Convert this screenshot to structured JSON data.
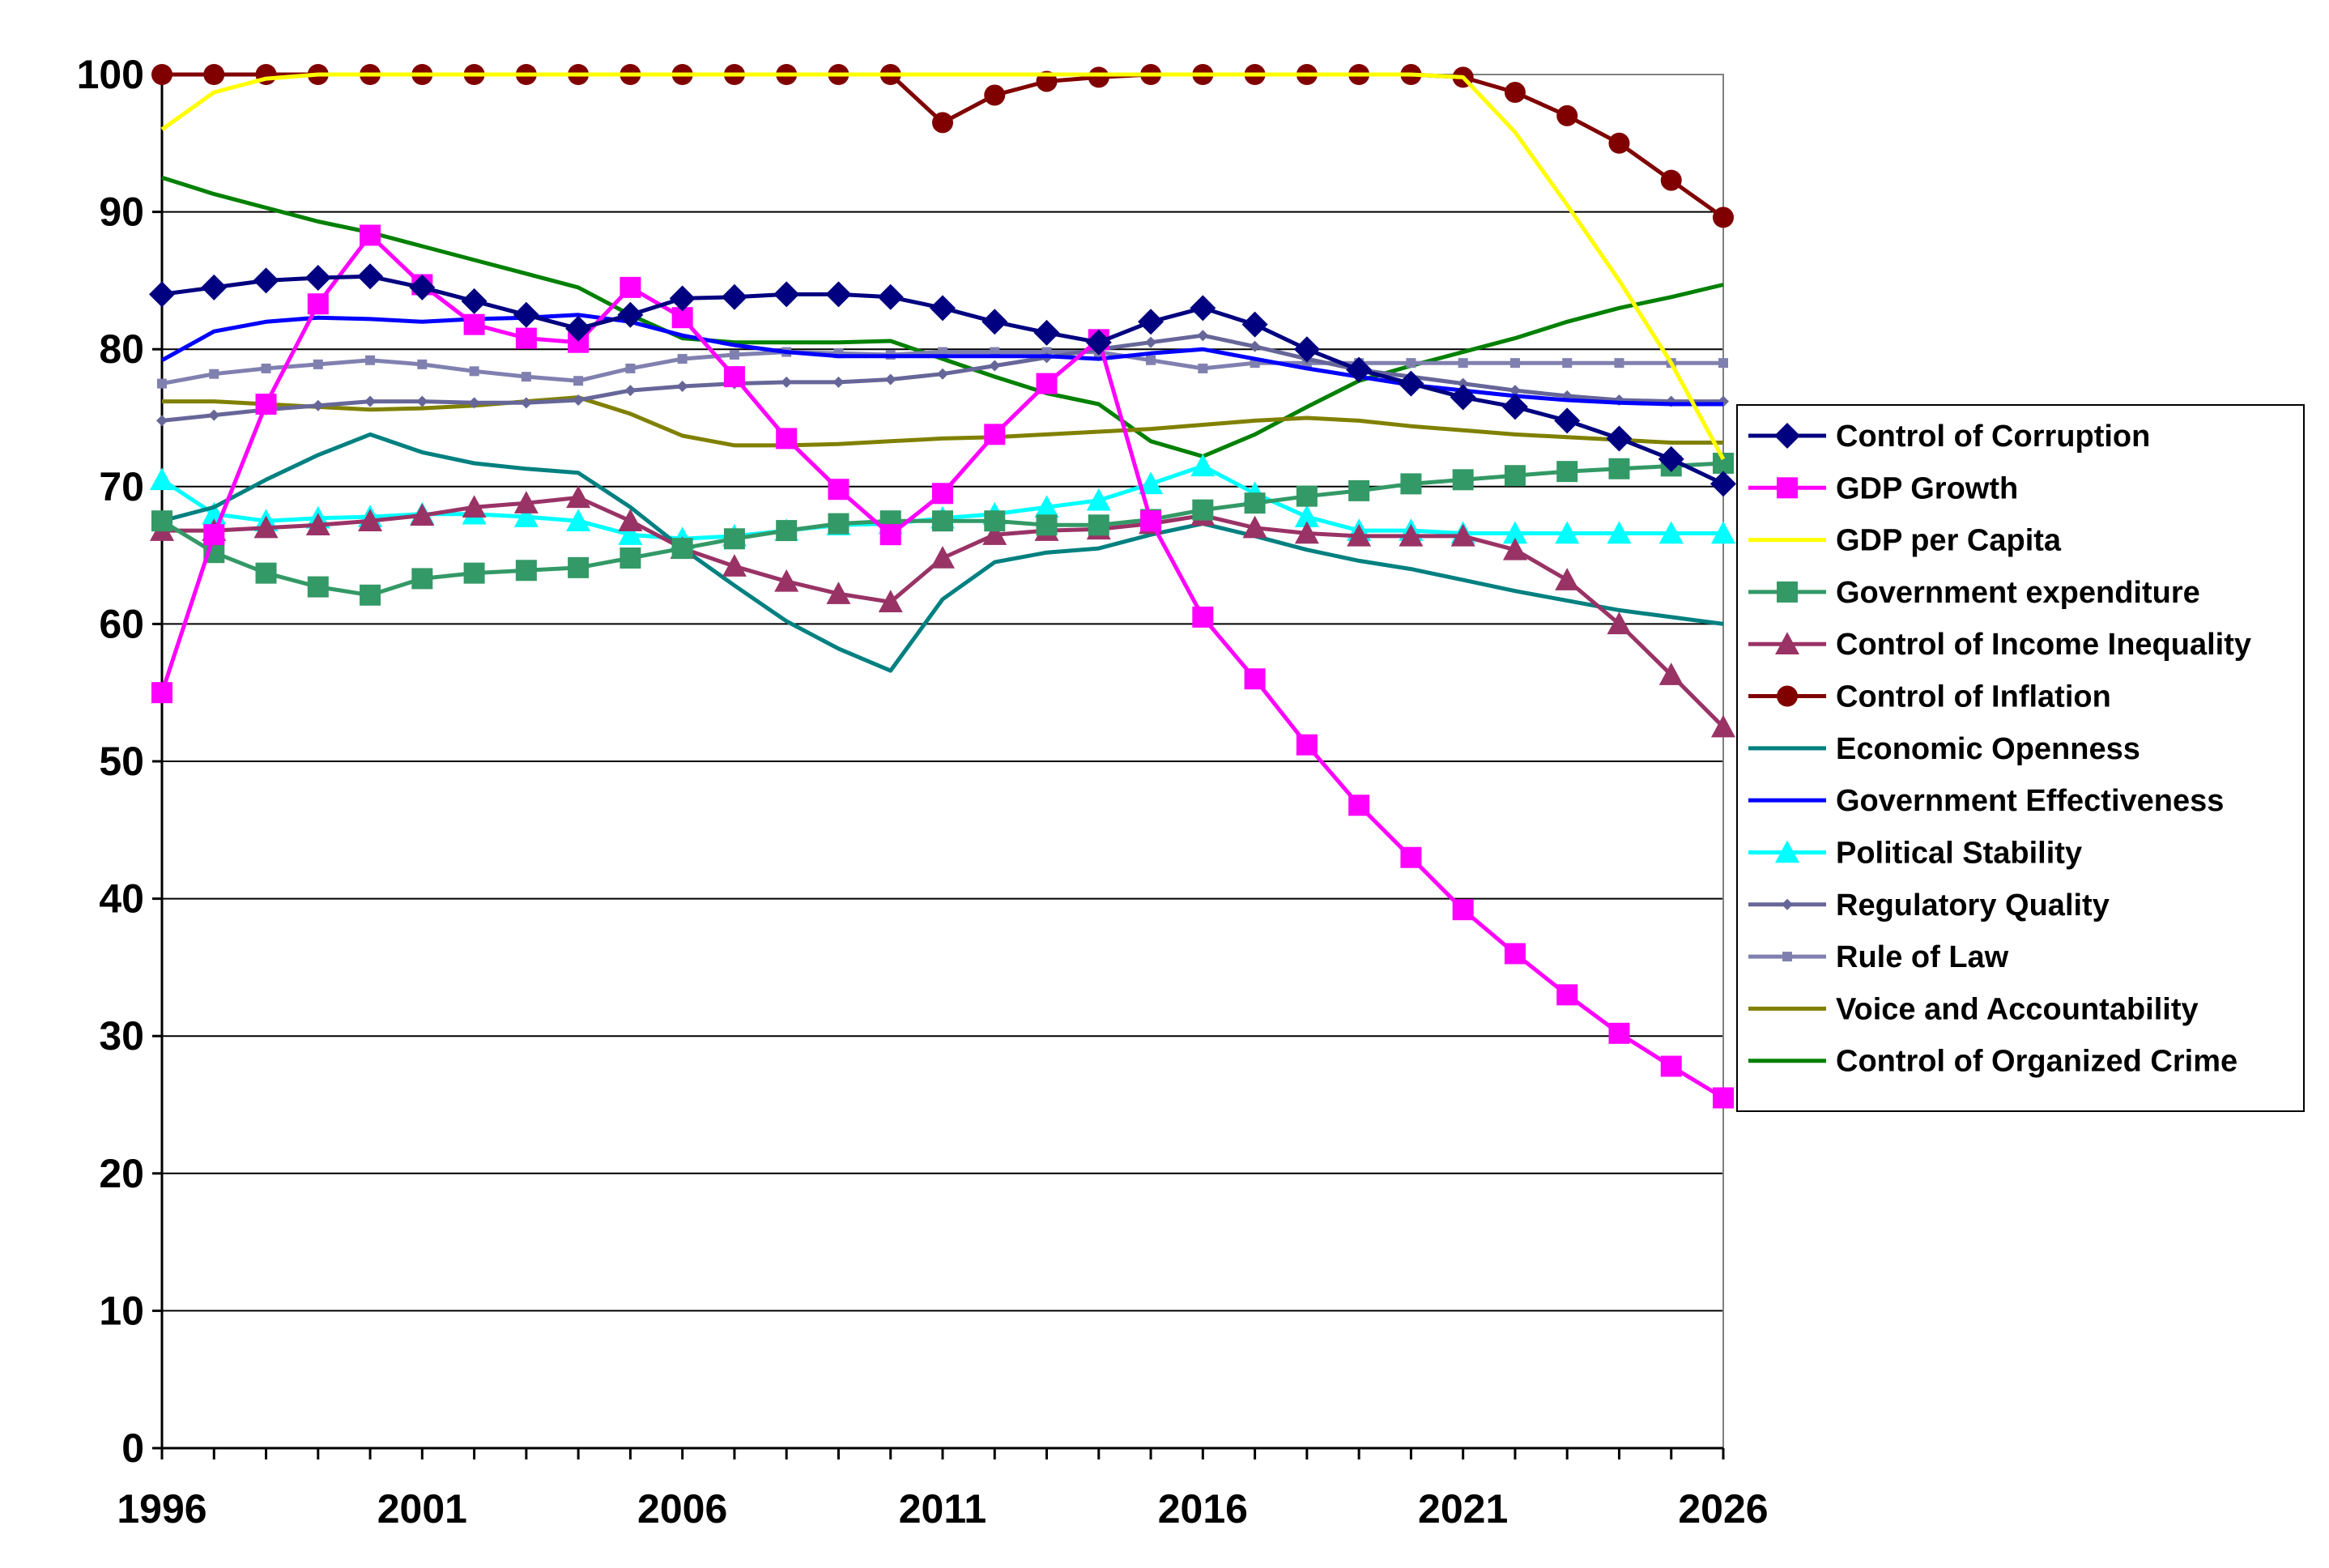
{
  "chart_data": {
    "type": "line",
    "title": "",
    "xlabel": "",
    "ylabel": "",
    "xlim": [
      1996,
      2026
    ],
    "ylim": [
      0,
      100
    ],
    "x_ticks": [
      1996,
      2001,
      2006,
      2011,
      2016,
      2021,
      2026
    ],
    "y_ticks": [
      0,
      10,
      20,
      30,
      40,
      50,
      60,
      70,
      80,
      90,
      100
    ],
    "grid": "horizontal",
    "legend_position": "right",
    "x": [
      1996,
      1997,
      1998,
      1999,
      2000,
      2001,
      2002,
      2003,
      2004,
      2005,
      2006,
      2007,
      2008,
      2009,
      2010,
      2011,
      2012,
      2013,
      2014,
      2015,
      2016,
      2017,
      2018,
      2019,
      2020,
      2021,
      2022,
      2023,
      2024,
      2025,
      2026
    ],
    "series": [
      {
        "name": "Control of Corruption",
        "color": "#000080",
        "marker": "diamond",
        "values": [
          84,
          84.5,
          85,
          85.2,
          85.3,
          84.5,
          83.5,
          82.5,
          81.5,
          82.5,
          83.7,
          83.8,
          84,
          84,
          83.8,
          83,
          82,
          81.2,
          80.5,
          82,
          83,
          81.8,
          80,
          78.5,
          77.5,
          76.5,
          75.8,
          74.8,
          73.5,
          72,
          70.2
        ]
      },
      {
        "name": "GDP Growth",
        "color": "#ff00ff",
        "marker": "square",
        "values": [
          55,
          66.5,
          76,
          83.3,
          88.3,
          84.7,
          81.8,
          80.8,
          80.5,
          84.5,
          82.3,
          78,
          73.5,
          69.8,
          66.5,
          69.5,
          73.8,
          77.5,
          80.7,
          67.5,
          60.5,
          56,
          51.2,
          46.8,
          43,
          39.2,
          36,
          33,
          30.2,
          27.8,
          25.5
        ]
      },
      {
        "name": "GDP per Capita",
        "color": "#ffff00",
        "marker": "none",
        "values": [
          96,
          98.7,
          99.7,
          100,
          100,
          100,
          100,
          100,
          100,
          100,
          100,
          100,
          100,
          100,
          100,
          100,
          100,
          100,
          100,
          100,
          100,
          100,
          100,
          100,
          100,
          99.8,
          95.8,
          90.5,
          85,
          79,
          72
        ]
      },
      {
        "name": "Government expenditure",
        "color": "#339966",
        "marker": "square",
        "values": [
          67.5,
          65.2,
          63.7,
          62.7,
          62.1,
          63.3,
          63.7,
          63.9,
          64.1,
          64.8,
          65.5,
          66.2,
          66.8,
          67.3,
          67.5,
          67.5,
          67.5,
          67.2,
          67.2,
          67.6,
          68.3,
          68.8,
          69.3,
          69.7,
          70.2,
          70.5,
          70.8,
          71.1,
          71.3,
          71.5,
          71.7
        ]
      },
      {
        "name": "Control of Income Inequality",
        "color": "#993366",
        "marker": "triangle",
        "values": [
          66.8,
          66.8,
          67,
          67.2,
          67.5,
          67.9,
          68.5,
          68.8,
          69.2,
          67.5,
          65.5,
          64.2,
          63.1,
          62.2,
          61.6,
          64.8,
          66.5,
          66.8,
          66.9,
          67.3,
          67.9,
          67,
          66.6,
          66.4,
          66.4,
          66.4,
          65.4,
          63.2,
          60,
          56.3,
          52.5
        ]
      },
      {
        "name": "Control of Inflation",
        "color": "#800000",
        "marker": "circle",
        "values": [
          100,
          100,
          100,
          100,
          100,
          100,
          100,
          100,
          100,
          100,
          100,
          100,
          100,
          100,
          100,
          96.5,
          98.5,
          99.5,
          99.8,
          100,
          100,
          100,
          100,
          100,
          100,
          99.8,
          98.7,
          97,
          95,
          92.3,
          89.6
        ]
      },
      {
        "name": "Economic Openness",
        "color": "#008080",
        "marker": "none",
        "values": [
          67.5,
          68.5,
          70.5,
          72.3,
          73.8,
          72.5,
          71.7,
          71.3,
          71,
          68.5,
          65.5,
          62.8,
          60.2,
          58.2,
          56.6,
          61.8,
          64.5,
          65.2,
          65.5,
          66.5,
          67.3,
          66.4,
          65.4,
          64.6,
          64,
          63.2,
          62.4,
          61.7,
          61,
          60.5,
          60
        ]
      },
      {
        "name": "Government Effectiveness",
        "color": "#0000ff",
        "marker": "none",
        "values": [
          79.2,
          81.3,
          82,
          82.3,
          82.2,
          82,
          82.2,
          82.3,
          82.5,
          82,
          81,
          80.3,
          79.8,
          79.5,
          79.5,
          79.5,
          79.5,
          79.5,
          79.3,
          79.7,
          80,
          79.3,
          78.6,
          78,
          77.4,
          77,
          76.6,
          76.3,
          76.1,
          76,
          76
        ]
      },
      {
        "name": "Political Stability",
        "color": "#00ffff",
        "marker": "triangle",
        "values": [
          70.5,
          68,
          67.5,
          67.7,
          67.8,
          68,
          68,
          67.8,
          67.5,
          66.5,
          66.2,
          66.4,
          66.8,
          67.2,
          67.3,
          67.7,
          68,
          68.5,
          69,
          70.2,
          71.5,
          69.5,
          67.8,
          66.8,
          66.8,
          66.6,
          66.6,
          66.6,
          66.6,
          66.6,
          66.6
        ]
      },
      {
        "name": "Regulatory Quality",
        "color": "#666699",
        "marker": "small-diamond",
        "values": [
          74.8,
          75.2,
          75.6,
          75.9,
          76.2,
          76.2,
          76.1,
          76.1,
          76.3,
          77,
          77.3,
          77.5,
          77.6,
          77.6,
          77.8,
          78.2,
          78.8,
          79.4,
          80,
          80.5,
          81,
          80.2,
          79.3,
          78.5,
          78,
          77.5,
          77,
          76.6,
          76.3,
          76.2,
          76.2
        ]
      },
      {
        "name": "Rule of Law",
        "color": "#8080b0",
        "marker": "small-square",
        "values": [
          77.5,
          78.2,
          78.6,
          78.9,
          79.2,
          78.9,
          78.4,
          78,
          77.7,
          78.6,
          79.3,
          79.6,
          79.8,
          79.7,
          79.6,
          79.8,
          79.8,
          79.8,
          79.8,
          79.2,
          78.6,
          79,
          79,
          79,
          79,
          79,
          79,
          79,
          79,
          79,
          79
        ]
      },
      {
        "name": "Voice and Accountability",
        "color": "#808000",
        "marker": "none",
        "values": [
          76.2,
          76.2,
          76,
          75.8,
          75.6,
          75.7,
          75.9,
          76.2,
          76.5,
          75.3,
          73.7,
          73,
          73,
          73.1,
          73.3,
          73.5,
          73.6,
          73.8,
          74,
          74.2,
          74.5,
          74.8,
          75,
          74.8,
          74.4,
          74.1,
          73.8,
          73.6,
          73.4,
          73.2,
          73.2
        ]
      },
      {
        "name": "Control of Organized Crime",
        "color": "#008000",
        "marker": "none",
        "values": [
          92.5,
          91.3,
          90.3,
          89.3,
          88.5,
          87.5,
          86.5,
          85.5,
          84.5,
          82.5,
          80.8,
          80.5,
          80.5,
          80.5,
          80.6,
          79.3,
          78,
          76.8,
          76,
          73.3,
          72.2,
          73.8,
          75.8,
          77.7,
          78.8,
          79.8,
          80.8,
          82,
          83,
          83.8,
          84.7
        ]
      }
    ]
  }
}
